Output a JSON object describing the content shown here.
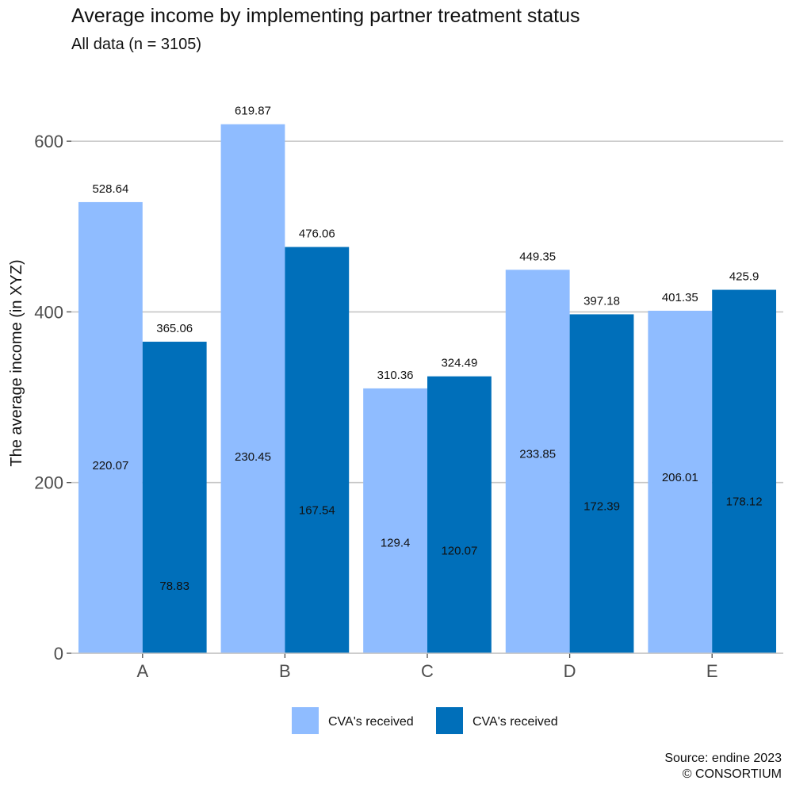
{
  "chart_data": {
    "type": "bar",
    "title": "Average income by implementing partner treatment status",
    "subtitle": "All data (n = 3105)",
    "ylabel": "The average income (in XYZ)",
    "xlabel": "",
    "categories": [
      "A",
      "B",
      "C",
      "D",
      "E"
    ],
    "ylim": [
      0,
      680
    ],
    "yticks": [
      0,
      200,
      400,
      600
    ],
    "grid": "horizontal major",
    "legend_position": "bottom",
    "series": [
      {
        "name": "CVA's received",
        "color": "#8fbcff",
        "values": [
          528.64,
          619.87,
          310.36,
          449.35,
          401.35
        ],
        "labels": [
          "528.64",
          "619.87",
          "310.36",
          "449.35",
          "401.35"
        ],
        "inner_values": [
          220.07,
          230.45,
          129.4,
          233.85,
          206.01
        ],
        "inner_labels": [
          "220.07",
          "230.45",
          "129.4",
          "233.85",
          "206.01"
        ]
      },
      {
        "name": "CVA's received",
        "color": "#006fba",
        "values": [
          365.06,
          476.06,
          324.49,
          397.18,
          425.9
        ],
        "labels": [
          "365.06",
          "476.06",
          "324.49",
          "397.18",
          "425.9"
        ],
        "inner_values": [
          78.83,
          167.54,
          120.07,
          172.39,
          178.12
        ],
        "inner_labels": [
          "78.83",
          "167.54",
          "120.07",
          "172.39",
          "178.12"
        ]
      }
    ],
    "caption": [
      "Source: endine 2023",
      "© CONSORTIUM"
    ]
  }
}
